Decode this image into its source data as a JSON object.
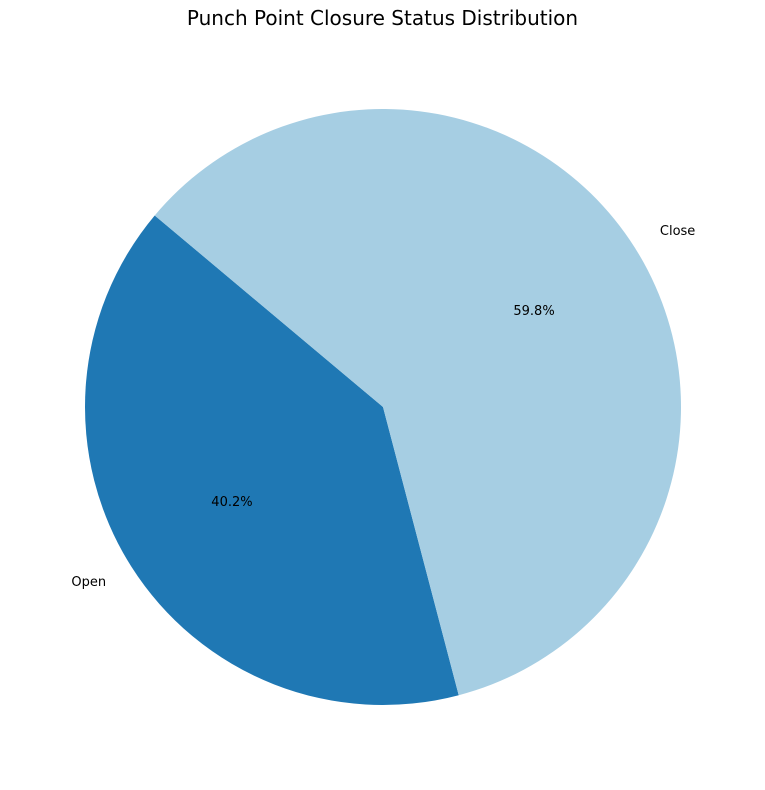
{
  "chart_data": {
    "type": "pie",
    "title": "Punch Point Closure Status Distribution",
    "categories": [
      "Open",
      "Close"
    ],
    "values": [
      40.2,
      59.8
    ],
    "percent_labels": [
      "40.2%",
      "59.8%"
    ],
    "colors": [
      "#1f78b4",
      "#a6cee3"
    ],
    "start_angle_deg": 140,
    "direction": "counterclockwise",
    "legend": "none"
  }
}
